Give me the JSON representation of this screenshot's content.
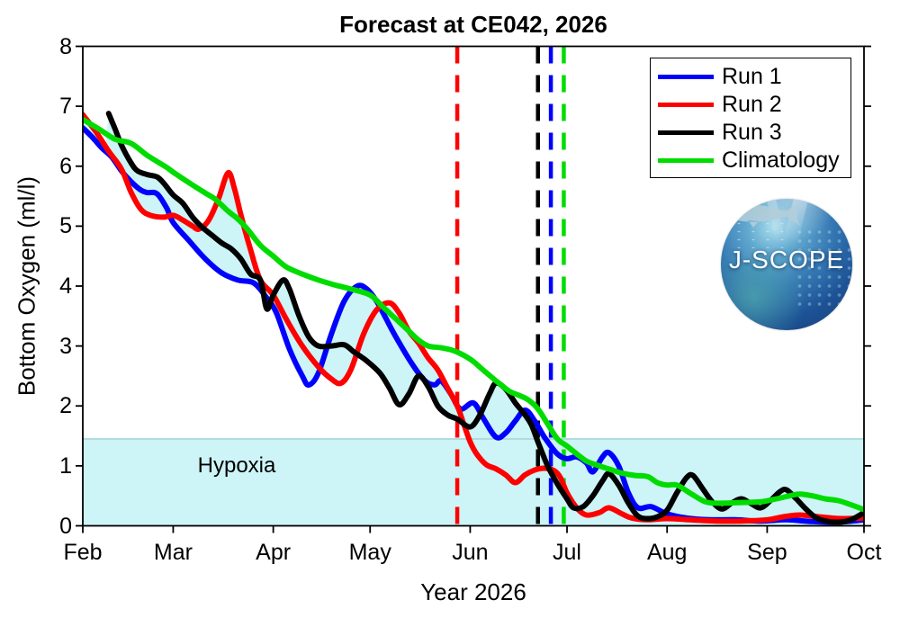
{
  "figure": {
    "title": "Forecast at CE042, 2026",
    "x_axis_title": "Year 2026",
    "y_axis_title": "Bottom Oxygen (ml/l)",
    "hypoxia_label": "Hypoxia",
    "logo_text": "J-SCOPE"
  },
  "chart_data": {
    "type": "line",
    "title": "Forecast at CE042, 2026",
    "xlabel": "Year 2026",
    "ylabel": "Bottom Oxygen (ml/l)",
    "x_unit": "days since Feb 1, 2026",
    "x_tick_labels": [
      "Feb",
      "Mar",
      "Apr",
      "May",
      "Jun",
      "Jul",
      "Aug",
      "Sep",
      "Oct"
    ],
    "x_tick_days": [
      0,
      28,
      59,
      89,
      120,
      150,
      181,
      212,
      242
    ],
    "xlim_days": [
      0,
      242
    ],
    "ylim": [
      0,
      8
    ],
    "y_ticks": [
      0,
      1,
      2,
      3,
      4,
      5,
      6,
      7,
      8
    ],
    "grid": false,
    "legend_position": "top-right",
    "hypoxia_threshold": 1.45,
    "hypoxia_fill": "#CDF4F6",
    "hypoxia_edge": "#A4D6DA",
    "ensemble_fill": "#CDF4F6",
    "axis_color": "#000000",
    "event_lines": [
      {
        "series": "Run 2",
        "color": "#FF0000",
        "day": 116,
        "approx_date": "May 28"
      },
      {
        "series": "Run 3",
        "color": "#000000",
        "day": 141,
        "approx_date": "Jun 22"
      },
      {
        "series": "Run 1",
        "color": "#0000FF",
        "day": 145,
        "approx_date": "Jun 26"
      },
      {
        "series": "Climatology",
        "color": "#00DC00",
        "day": 149,
        "approx_date": "Jun 30"
      }
    ],
    "series": [
      {
        "name": "Run 1",
        "color": "#0000FF",
        "in_envelope": true,
        "points": [
          [
            0,
            6.64
          ],
          [
            3,
            6.48
          ],
          [
            6,
            6.3
          ],
          [
            9,
            6.15
          ],
          [
            12,
            5.92
          ],
          [
            15,
            5.74
          ],
          [
            18,
            5.6
          ],
          [
            20,
            5.56
          ],
          [
            23,
            5.54
          ],
          [
            26,
            5.3
          ],
          [
            28,
            5.06
          ],
          [
            33,
            4.75
          ],
          [
            38,
            4.45
          ],
          [
            43,
            4.22
          ],
          [
            48,
            4.1
          ],
          [
            53,
            4.05
          ],
          [
            57,
            3.8
          ],
          [
            60,
            3.55
          ],
          [
            64,
            2.95
          ],
          [
            68,
            2.5
          ],
          [
            70,
            2.35
          ],
          [
            73,
            2.55
          ],
          [
            77,
            3.2
          ],
          [
            81,
            3.75
          ],
          [
            85,
            4.0
          ],
          [
            88,
            3.95
          ],
          [
            91,
            3.75
          ],
          [
            94,
            3.45
          ],
          [
            97,
            3.15
          ],
          [
            102,
            2.7
          ],
          [
            106,
            2.42
          ],
          [
            109,
            2.35
          ],
          [
            111,
            2.42
          ],
          [
            114,
            2.2
          ],
          [
            117,
            1.95
          ],
          [
            121,
            2.05
          ],
          [
            124,
            1.8
          ],
          [
            128,
            1.48
          ],
          [
            131,
            1.55
          ],
          [
            134,
            1.75
          ],
          [
            137,
            1.93
          ],
          [
            140,
            1.75
          ],
          [
            143,
            1.48
          ],
          [
            147,
            1.2
          ],
          [
            150,
            1.12
          ],
          [
            153,
            1.15
          ],
          [
            156,
            1.05
          ],
          [
            158,
            0.9
          ],
          [
            161,
            1.15
          ],
          [
            163,
            1.22
          ],
          [
            166,
            1.0
          ],
          [
            169,
            0.55
          ],
          [
            172,
            0.3
          ],
          [
            176,
            0.32
          ],
          [
            181,
            0.2
          ],
          [
            187,
            0.13
          ],
          [
            194,
            0.1
          ],
          [
            202,
            0.1
          ],
          [
            210,
            0.08
          ],
          [
            218,
            0.1
          ],
          [
            226,
            0.07
          ],
          [
            234,
            0.06
          ],
          [
            242,
            0.1
          ]
        ]
      },
      {
        "name": "Run 2",
        "color": "#FF0000",
        "in_envelope": true,
        "points": [
          [
            0,
            6.86
          ],
          [
            4,
            6.58
          ],
          [
            8,
            6.25
          ],
          [
            12,
            5.95
          ],
          [
            15,
            5.56
          ],
          [
            18,
            5.28
          ],
          [
            21,
            5.18
          ],
          [
            25,
            5.15
          ],
          [
            28,
            5.18
          ],
          [
            31,
            5.1
          ],
          [
            34,
            5.0
          ],
          [
            36,
            4.95
          ],
          [
            39,
            5.1
          ],
          [
            42,
            5.45
          ],
          [
            45,
            5.89
          ],
          [
            47,
            5.62
          ],
          [
            49,
            5.18
          ],
          [
            52,
            4.6
          ],
          [
            55,
            4.1
          ],
          [
            59,
            3.85
          ],
          [
            63,
            3.45
          ],
          [
            68,
            3.0
          ],
          [
            73,
            2.65
          ],
          [
            77,
            2.45
          ],
          [
            80,
            2.38
          ],
          [
            83,
            2.6
          ],
          [
            87,
            3.2
          ],
          [
            91,
            3.6
          ],
          [
            95,
            3.72
          ],
          [
            98,
            3.55
          ],
          [
            101,
            3.25
          ],
          [
            104,
            3.05
          ],
          [
            107,
            2.8
          ],
          [
            110,
            2.6
          ],
          [
            113,
            2.3
          ],
          [
            116,
            2.0
          ],
          [
            118,
            1.7
          ],
          [
            120,
            1.4
          ],
          [
            122,
            1.2
          ],
          [
            125,
            1.02
          ],
          [
            128,
            0.95
          ],
          [
            131,
            0.85
          ],
          [
            134,
            0.72
          ],
          [
            137,
            0.85
          ],
          [
            140,
            0.93
          ],
          [
            143,
            0.96
          ],
          [
            146,
            0.92
          ],
          [
            148,
            0.8
          ],
          [
            150,
            0.55
          ],
          [
            153,
            0.3
          ],
          [
            156,
            0.18
          ],
          [
            160,
            0.22
          ],
          [
            163,
            0.3
          ],
          [
            167,
            0.2
          ],
          [
            170,
            0.13
          ],
          [
            175,
            0.1
          ],
          [
            181,
            0.12
          ],
          [
            188,
            0.1
          ],
          [
            196,
            0.08
          ],
          [
            204,
            0.08
          ],
          [
            212,
            0.1
          ],
          [
            217,
            0.15
          ],
          [
            222,
            0.18
          ],
          [
            228,
            0.15
          ],
          [
            235,
            0.12
          ],
          [
            242,
            0.13
          ]
        ]
      },
      {
        "name": "Run 3",
        "color": "#000000",
        "in_envelope": true,
        "points": [
          [
            8,
            6.88
          ],
          [
            10,
            6.62
          ],
          [
            12,
            6.35
          ],
          [
            15,
            6.05
          ],
          [
            17,
            5.92
          ],
          [
            20,
            5.86
          ],
          [
            23,
            5.82
          ],
          [
            25,
            5.72
          ],
          [
            28,
            5.52
          ],
          [
            31,
            5.38
          ],
          [
            34,
            5.15
          ],
          [
            37,
            4.98
          ],
          [
            40,
            4.85
          ],
          [
            43,
            4.72
          ],
          [
            46,
            4.62
          ],
          [
            49,
            4.45
          ],
          [
            52,
            4.2
          ],
          [
            55,
            4.1
          ],
          [
            57,
            3.62
          ],
          [
            59,
            3.85
          ],
          [
            62,
            4.1
          ],
          [
            64,
            3.95
          ],
          [
            67,
            3.5
          ],
          [
            70,
            3.15
          ],
          [
            73,
            3.0
          ],
          [
            77,
            3.0
          ],
          [
            81,
            3.02
          ],
          [
            84,
            2.9
          ],
          [
            88,
            2.75
          ],
          [
            92,
            2.55
          ],
          [
            95,
            2.3
          ],
          [
            98,
            2.02
          ],
          [
            101,
            2.2
          ],
          [
            104,
            2.5
          ],
          [
            107,
            2.32
          ],
          [
            110,
            2.0
          ],
          [
            113,
            1.85
          ],
          [
            116,
            1.78
          ],
          [
            120,
            1.65
          ],
          [
            123,
            1.85
          ],
          [
            126,
            2.2
          ],
          [
            128,
            2.38
          ],
          [
            131,
            2.28
          ],
          [
            134,
            2.05
          ],
          [
            137,
            1.85
          ],
          [
            139,
            1.68
          ],
          [
            141,
            1.4
          ],
          [
            144,
            1.0
          ],
          [
            147,
            0.7
          ],
          [
            150,
            0.45
          ],
          [
            152,
            0.3
          ],
          [
            155,
            0.32
          ],
          [
            158,
            0.5
          ],
          [
            161,
            0.75
          ],
          [
            163,
            0.87
          ],
          [
            166,
            0.68
          ],
          [
            169,
            0.38
          ],
          [
            172,
            0.16
          ],
          [
            175,
            0.12
          ],
          [
            178,
            0.15
          ],
          [
            181,
            0.26
          ],
          [
            184,
            0.55
          ],
          [
            187,
            0.8
          ],
          [
            189,
            0.84
          ],
          [
            192,
            0.62
          ],
          [
            195,
            0.4
          ],
          [
            198,
            0.28
          ],
          [
            201,
            0.38
          ],
          [
            204,
            0.45
          ],
          [
            207,
            0.37
          ],
          [
            210,
            0.3
          ],
          [
            213,
            0.42
          ],
          [
            216,
            0.57
          ],
          [
            218,
            0.6
          ],
          [
            221,
            0.45
          ],
          [
            224,
            0.28
          ],
          [
            227,
            0.14
          ],
          [
            230,
            0.08
          ],
          [
            234,
            0.06
          ],
          [
            238,
            0.1
          ],
          [
            242,
            0.22
          ]
        ]
      },
      {
        "name": "Climatology",
        "color": "#00DC00",
        "in_envelope": false,
        "points": [
          [
            0,
            6.78
          ],
          [
            5,
            6.62
          ],
          [
            10,
            6.45
          ],
          [
            15,
            6.38
          ],
          [
            20,
            6.18
          ],
          [
            26,
            5.98
          ],
          [
            28,
            5.9
          ],
          [
            33,
            5.72
          ],
          [
            38,
            5.55
          ],
          [
            41,
            5.45
          ],
          [
            45,
            5.25
          ],
          [
            48,
            5.12
          ],
          [
            51,
            4.95
          ],
          [
            55,
            4.68
          ],
          [
            59,
            4.5
          ],
          [
            63,
            4.32
          ],
          [
            68,
            4.2
          ],
          [
            73,
            4.1
          ],
          [
            78,
            4.02
          ],
          [
            83,
            3.95
          ],
          [
            89,
            3.85
          ],
          [
            93,
            3.65
          ],
          [
            97,
            3.45
          ],
          [
            101,
            3.25
          ],
          [
            104,
            3.1
          ],
          [
            107,
            3.0
          ],
          [
            111,
            2.97
          ],
          [
            115,
            2.92
          ],
          [
            120,
            2.78
          ],
          [
            124,
            2.6
          ],
          [
            128,
            2.42
          ],
          [
            132,
            2.25
          ],
          [
            135,
            2.18
          ],
          [
            138,
            2.1
          ],
          [
            141,
            1.95
          ],
          [
            144,
            1.7
          ],
          [
            147,
            1.45
          ],
          [
            150,
            1.33
          ],
          [
            153,
            1.2
          ],
          [
            156,
            1.08
          ],
          [
            160,
            1.0
          ],
          [
            164,
            0.93
          ],
          [
            167,
            0.88
          ],
          [
            171,
            0.84
          ],
          [
            175,
            0.82
          ],
          [
            178,
            0.72
          ],
          [
            181,
            0.68
          ],
          [
            184,
            0.68
          ],
          [
            188,
            0.55
          ],
          [
            192,
            0.42
          ],
          [
            195,
            0.38
          ],
          [
            200,
            0.38
          ],
          [
            205,
            0.39
          ],
          [
            210,
            0.4
          ],
          [
            214,
            0.44
          ],
          [
            219,
            0.5
          ],
          [
            222,
            0.53
          ],
          [
            226,
            0.5
          ],
          [
            230,
            0.45
          ],
          [
            234,
            0.42
          ],
          [
            238,
            0.35
          ],
          [
            242,
            0.27
          ]
        ]
      }
    ]
  }
}
